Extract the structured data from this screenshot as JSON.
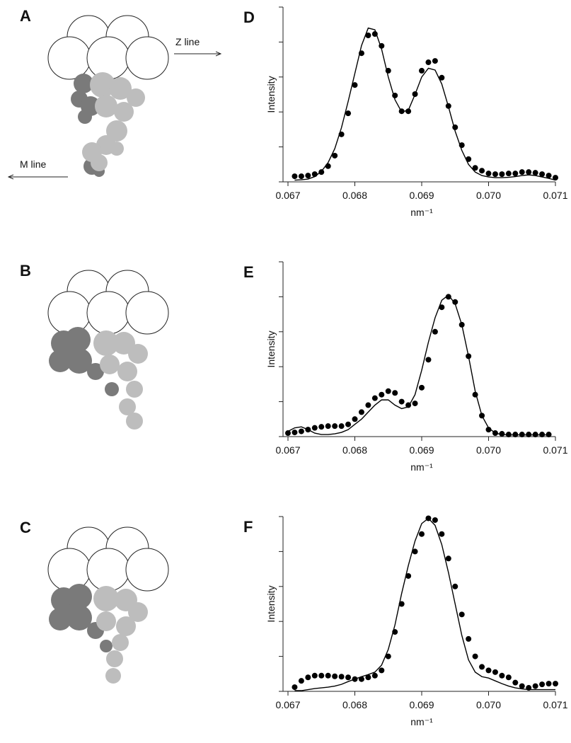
{
  "diagrams": {
    "labels": [
      "A",
      "B",
      "C"
    ],
    "z_line": "Z line",
    "m_line": "M line"
  },
  "chart_data": [
    {
      "type": "line",
      "panel_label": "D",
      "y_label": "Intensity",
      "x_label": "nm⁻¹",
      "x": [
        0.0671,
        0.0672,
        0.0673,
        0.0674,
        0.0675,
        0.0676,
        0.0677,
        0.0678,
        0.0679,
        0.068,
        0.0681,
        0.0682,
        0.0683,
        0.0684,
        0.0685,
        0.0686,
        0.0687,
        0.0688,
        0.0689,
        0.069,
        0.0691,
        0.0692,
        0.0693,
        0.0694,
        0.0695,
        0.0696,
        0.0697,
        0.0698,
        0.0699,
        0.07,
        0.0701,
        0.0702,
        0.0703,
        0.0704,
        0.0705,
        0.0706,
        0.0707,
        0.0708,
        0.0709,
        0.071
      ],
      "series": [
        {
          "mode": "markers",
          "color": "#000000",
          "values": [
            0.16,
            0.16,
            0.18,
            0.22,
            0.28,
            0.45,
            0.75,
            1.36,
            1.96,
            2.77,
            3.68,
            4.19,
            4.23,
            3.89,
            3.18,
            2.47,
            2.02,
            2.02,
            2.51,
            3.18,
            3.42,
            3.46,
            2.98,
            2.17,
            1.56,
            1.05,
            0.65,
            0.4,
            0.32,
            0.24,
            0.22,
            0.22,
            0.24,
            0.24,
            0.28,
            0.28,
            0.26,
            0.22,
            0.18,
            0.12
          ]
        },
        {
          "mode": "line",
          "color": "#000000",
          "values": [
            0.05,
            0.06,
            0.08,
            0.15,
            0.3,
            0.55,
            0.95,
            1.55,
            2.3,
            3.1,
            3.9,
            4.4,
            4.35,
            3.8,
            3.0,
            2.35,
            2.0,
            2.05,
            2.5,
            3.0,
            3.25,
            3.2,
            2.8,
            2.15,
            1.45,
            0.9,
            0.5,
            0.28,
            0.18,
            0.14,
            0.12,
            0.12,
            0.13,
            0.15,
            0.18,
            0.2,
            0.18,
            0.14,
            0.1,
            0.05
          ]
        }
      ],
      "xlim": [
        0.067,
        0.071
      ],
      "xticks": [
        0.067,
        0.068,
        0.069,
        {
          "value": 0.07,
          "label": "0.070"
        },
        0.071
      ],
      "ylim": [
        0,
        5
      ],
      "yticks": [
        0,
        1,
        2,
        3,
        4,
        5
      ],
      "ytick_labels": false
    },
    {
      "type": "line",
      "panel_label": "E",
      "y_label": "Intensity",
      "x_label": "nm⁻¹",
      "x": [
        0.067,
        0.0671,
        0.0672,
        0.0673,
        0.0674,
        0.0675,
        0.0676,
        0.0677,
        0.0678,
        0.0679,
        0.068,
        0.0681,
        0.0682,
        0.0683,
        0.0684,
        0.0685,
        0.0686,
        0.0687,
        0.0688,
        0.0689,
        0.069,
        0.0691,
        0.0692,
        0.0693,
        0.0694,
        0.0695,
        0.0696,
        0.0697,
        0.0698,
        0.0699,
        0.07,
        0.0701,
        0.0702,
        0.0703,
        0.0704,
        0.0705,
        0.0706,
        0.0707,
        0.0708,
        0.0709
      ],
      "series": [
        {
          "mode": "markers",
          "color": "#000000",
          "values": [
            0.1,
            0.12,
            0.15,
            0.2,
            0.25,
            0.28,
            0.3,
            0.3,
            0.3,
            0.35,
            0.5,
            0.7,
            0.9,
            1.1,
            1.2,
            1.3,
            1.25,
            1.0,
            0.9,
            0.95,
            1.4,
            2.2,
            3.0,
            3.7,
            4.0,
            3.85,
            3.2,
            2.3,
            1.2,
            0.6,
            0.2,
            0.1,
            0.08,
            0.06,
            0.06,
            0.06,
            0.06,
            0.06,
            0.06,
            0.06
          ]
        },
        {
          "mode": "line",
          "color": "#000000",
          "values": [
            0.15,
            0.25,
            0.28,
            0.2,
            0.1,
            0.06,
            0.06,
            0.08,
            0.12,
            0.2,
            0.35,
            0.5,
            0.7,
            0.9,
            1.05,
            1.05,
            0.9,
            0.8,
            0.85,
            1.2,
            1.9,
            2.7,
            3.4,
            3.9,
            4.05,
            3.8,
            3.2,
            2.3,
            1.3,
            0.6,
            0.25,
            0.1,
            0.06,
            0.05,
            0.05,
            0.05,
            0.05,
            0.05,
            0.05,
            0.05
          ]
        }
      ],
      "xlim": [
        0.067,
        0.071
      ],
      "xticks": [
        0.067,
        0.068,
        0.069,
        {
          "value": 0.07,
          "label": "0.070"
        },
        0.071
      ],
      "ylim": [
        0,
        5
      ],
      "yticks": [
        0,
        1,
        2,
        3,
        4,
        5
      ],
      "ytick_labels": false
    },
    {
      "type": "line",
      "panel_label": "F",
      "y_label": "Intensity",
      "x_label": "nm⁻¹",
      "x": [
        0.0671,
        0.0672,
        0.0673,
        0.0674,
        0.0675,
        0.0676,
        0.0677,
        0.0678,
        0.0679,
        0.068,
        0.0681,
        0.0682,
        0.0683,
        0.0684,
        0.0685,
        0.0686,
        0.0687,
        0.0688,
        0.0689,
        0.069,
        0.0691,
        0.0692,
        0.0693,
        0.0694,
        0.0695,
        0.0696,
        0.0697,
        0.0698,
        0.0699,
        0.07,
        0.0701,
        0.0702,
        0.0703,
        0.0704,
        0.0705,
        0.0706,
        0.0707,
        0.0708,
        0.0709,
        0.071
      ],
      "series": [
        {
          "mode": "markers",
          "color": "#000000",
          "values": [
            0.12,
            0.3,
            0.4,
            0.45,
            0.45,
            0.45,
            0.43,
            0.42,
            0.4,
            0.35,
            0.35,
            0.4,
            0.45,
            0.6,
            1.0,
            1.7,
            2.5,
            3.3,
            4.0,
            4.5,
            4.95,
            4.9,
            4.5,
            3.8,
            3.0,
            2.2,
            1.5,
            1.0,
            0.7,
            0.6,
            0.55,
            0.45,
            0.4,
            0.25,
            0.15,
            0.1,
            0.15,
            0.2,
            0.22,
            0.22
          ]
        },
        {
          "mode": "line",
          "color": "#000000",
          "values": [
            0.02,
            0.02,
            0.05,
            0.08,
            0.1,
            0.12,
            0.15,
            0.2,
            0.28,
            0.35,
            0.42,
            0.48,
            0.55,
            0.75,
            1.2,
            1.9,
            2.8,
            3.6,
            4.3,
            4.8,
            4.95,
            4.75,
            4.2,
            3.4,
            2.5,
            1.6,
            0.9,
            0.55,
            0.42,
            0.38,
            0.3,
            0.22,
            0.15,
            0.1,
            0.07,
            0.05,
            0.05,
            0.05,
            0.05,
            0.05
          ]
        }
      ],
      "xlim": [
        0.067,
        0.071
      ],
      "xticks": [
        0.067,
        0.068,
        0.069,
        {
          "value": 0.07,
          "label": "0.070"
        },
        0.071
      ],
      "ylim": [
        0,
        5
      ],
      "yticks": [
        0,
        1,
        2,
        3,
        4,
        5
      ],
      "ytick_labels": false
    }
  ]
}
